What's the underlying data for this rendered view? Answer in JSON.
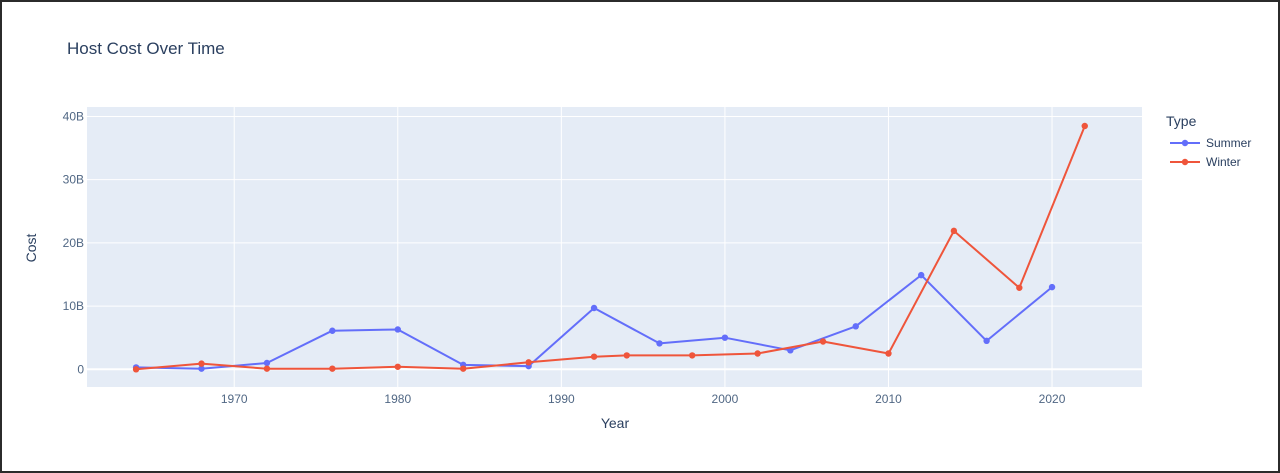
{
  "chart_data": {
    "type": "line",
    "title": "Host Cost Over Time",
    "xlabel": "Year",
    "ylabel": "Cost",
    "xlim": [
      1961,
      2025.5
    ],
    "ylim": [
      -2800000000,
      41500000000
    ],
    "x_ticks": [
      1970,
      1980,
      1990,
      2000,
      2010,
      2020
    ],
    "y_ticks": [
      0,
      10000000000,
      20000000000,
      30000000000,
      40000000000
    ],
    "y_tick_labels": [
      "0",
      "10B",
      "20B",
      "30B",
      "40B"
    ],
    "grid": true,
    "plot_background": "#e5ecf6",
    "legend": {
      "title": "Type",
      "placement": "right"
    },
    "series": [
      {
        "name": "Summer",
        "color": "#636efa",
        "x": [
          1964,
          1968,
          1972,
          1976,
          1980,
          1984,
          1988,
          1992,
          1996,
          2000,
          2004,
          2008,
          2012,
          2016,
          2020
        ],
        "values": [
          300000000,
          100000000,
          1000000000,
          6100000000,
          6300000000,
          700000000,
          500000000,
          9700000000,
          4100000000,
          5000000000,
          3000000000,
          6800000000,
          14900000000,
          4500000000,
          13000000000
        ]
      },
      {
        "name": "Winter",
        "color": "#ef553b",
        "x": [
          1964,
          1968,
          1972,
          1976,
          1980,
          1984,
          1988,
          1992,
          1994,
          1998,
          2002,
          2006,
          2010,
          2014,
          2018,
          2022
        ],
        "values": [
          0,
          900000000,
          100000000,
          100000000,
          400000000,
          100000000,
          1100000000,
          2000000000,
          2200000000,
          2200000000,
          2500000000,
          4400000000,
          2500000000,
          21900000000,
          12900000000,
          38500000000
        ]
      }
    ]
  }
}
